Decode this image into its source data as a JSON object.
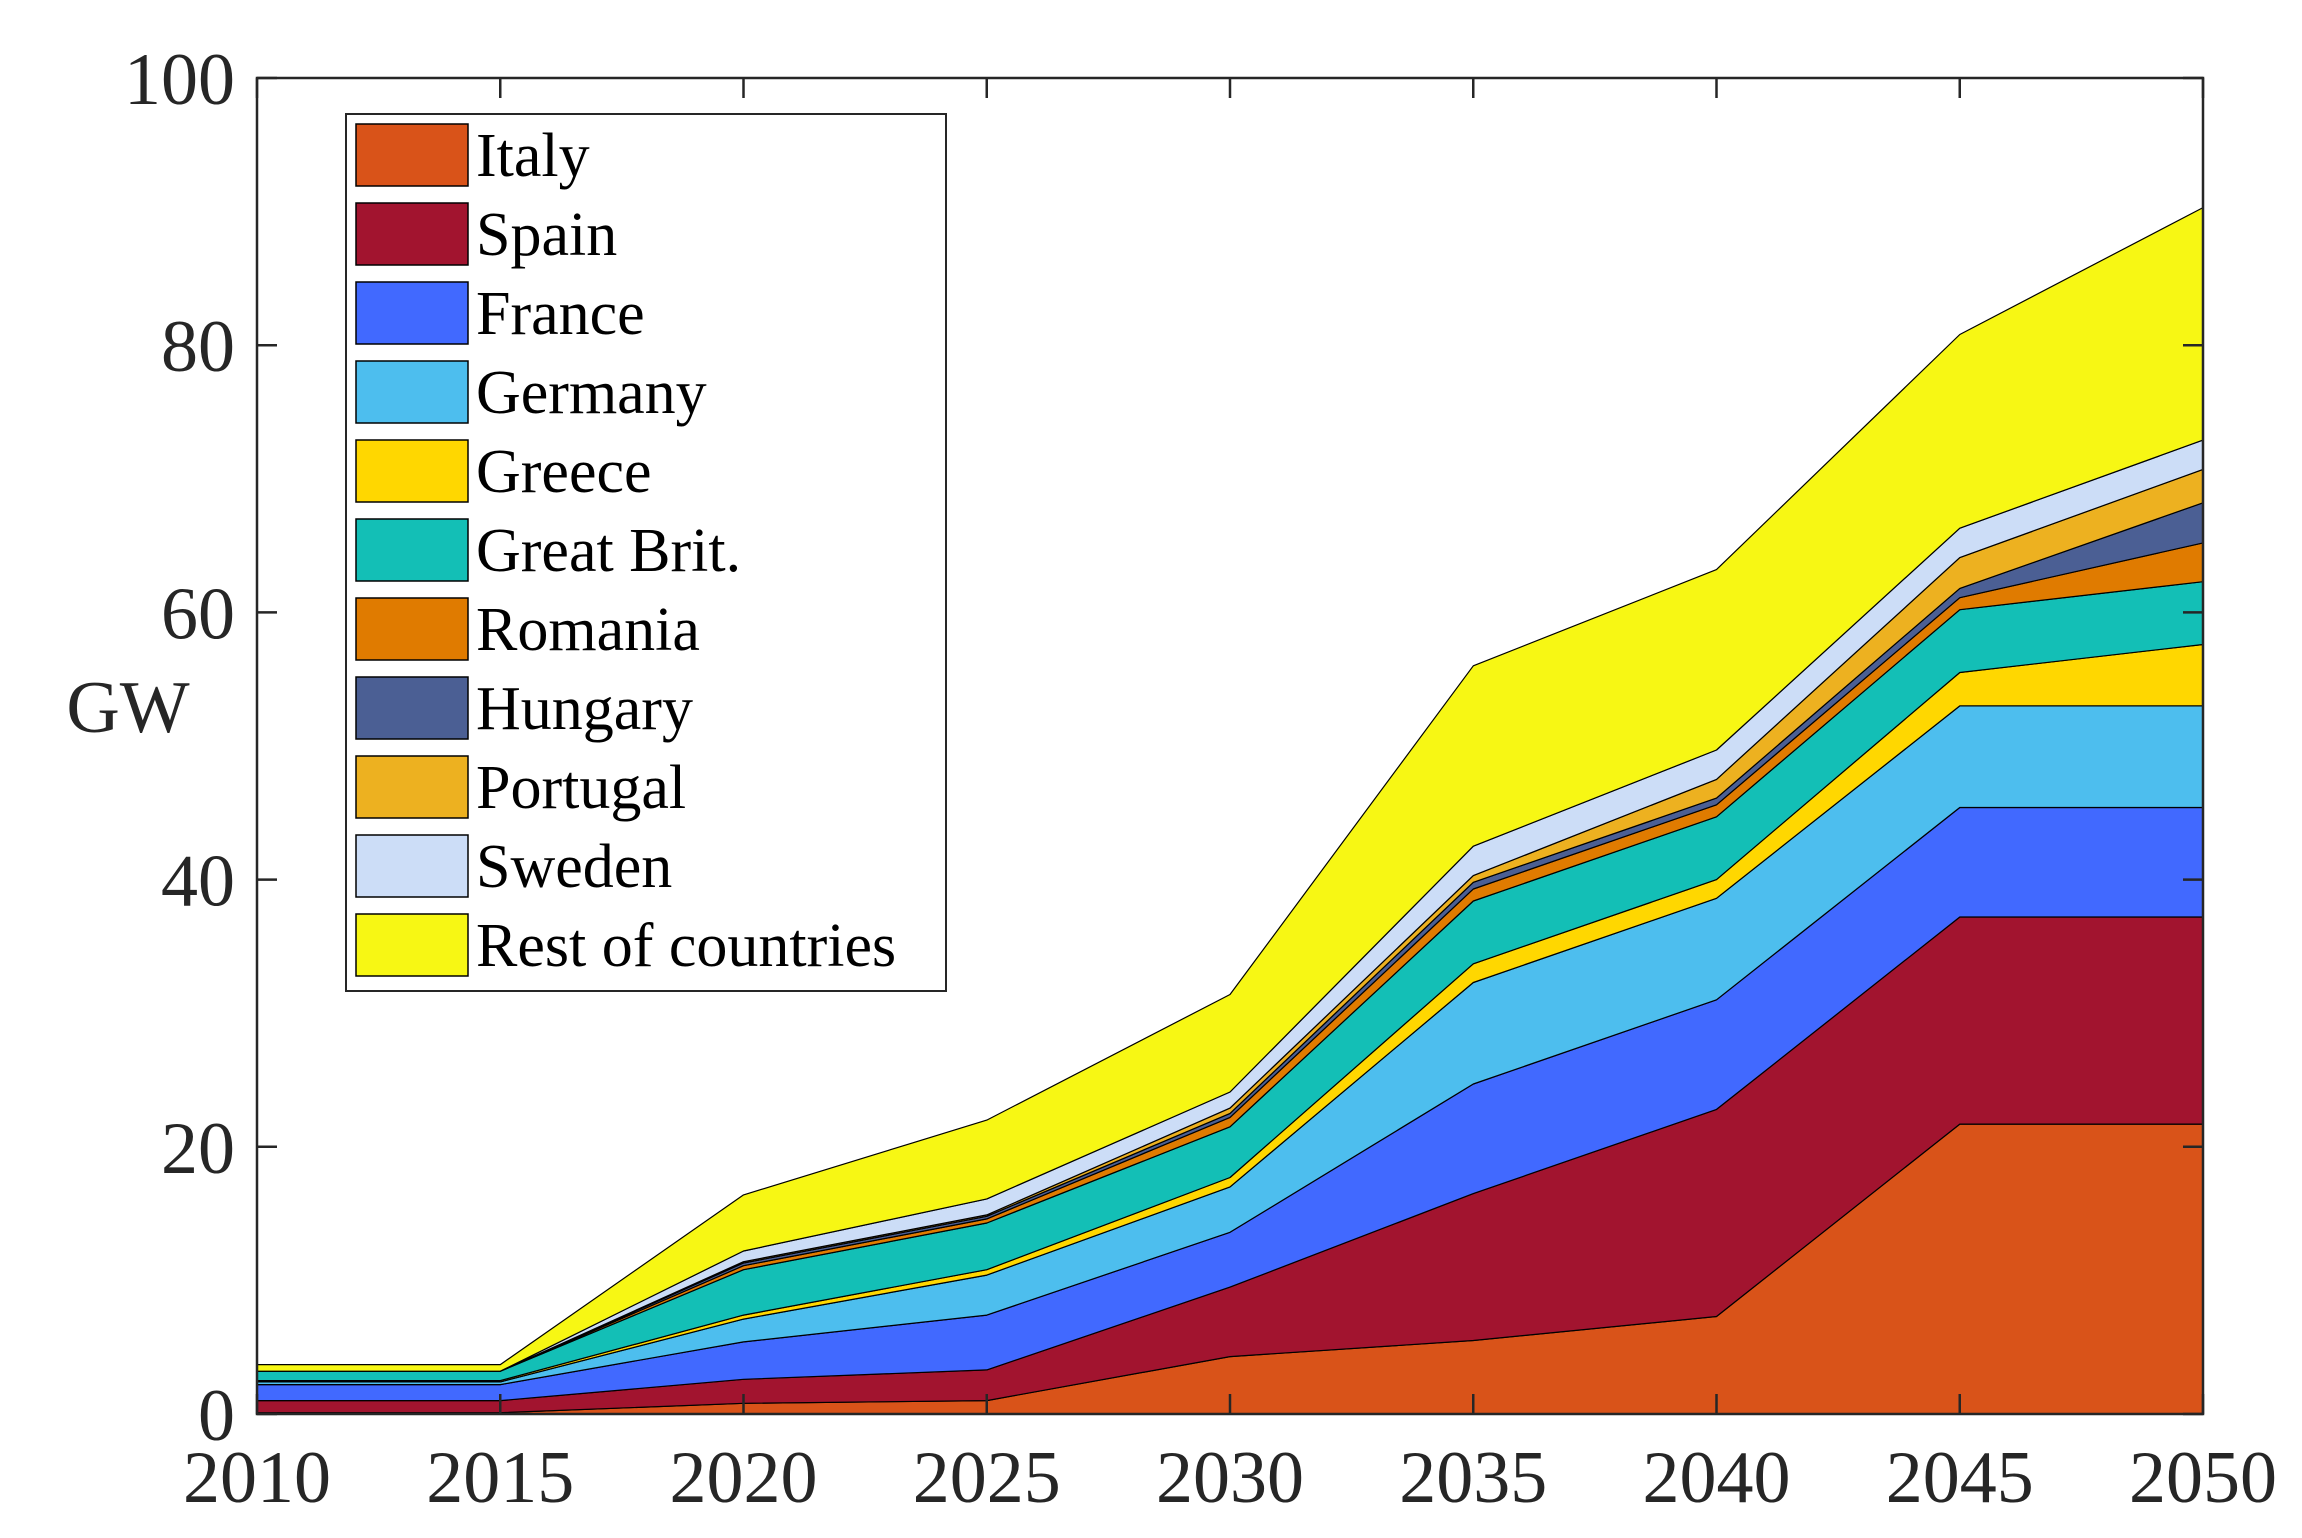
{
  "chart_data": {
    "type": "area",
    "stacked": true,
    "xlabel": "",
    "ylabel": "GW",
    "xlim": [
      2010,
      2050
    ],
    "ylim": [
      0,
      100
    ],
    "x": [
      2010,
      2015,
      2020,
      2025,
      2030,
      2035,
      2040,
      2045,
      2050
    ],
    "x_ticks": [
      "2010",
      "2015",
      "2020",
      "2025",
      "2030",
      "2035",
      "2040",
      "2045",
      "2050"
    ],
    "y_ticks": [
      "0",
      "20",
      "40",
      "60",
      "80",
      "100"
    ],
    "grid": false,
    "legend_position": "top-left",
    "series": [
      {
        "name": "Italy",
        "color": "#D95319",
        "values": [
          0.1,
          0.1,
          0.8,
          1.0,
          4.3,
          5.5,
          7.3,
          21.7,
          21.7
        ]
      },
      {
        "name": "Spain",
        "color": "#A2142F",
        "values": [
          0.9,
          0.9,
          1.8,
          2.3,
          5.2,
          11.0,
          15.5,
          15.5,
          15.5
        ]
      },
      {
        "name": "France",
        "color": "#4169FF",
        "values": [
          1.2,
          1.2,
          2.8,
          4.1,
          4.1,
          8.2,
          8.2,
          8.2,
          8.2
        ]
      },
      {
        "name": "Germany",
        "color": "#4DBEEE",
        "values": [
          0.2,
          0.2,
          1.7,
          3.0,
          3.4,
          7.6,
          7.6,
          7.6,
          7.6
        ]
      },
      {
        "name": "Greece",
        "color": "#FFD700",
        "values": [
          0.1,
          0.1,
          0.3,
          0.4,
          0.7,
          1.4,
          1.4,
          2.5,
          4.6
        ]
      },
      {
        "name": "Great Brit.",
        "color": "#13BFB6",
        "values": [
          0.7,
          0.7,
          3.4,
          3.5,
          3.8,
          4.7,
          4.7,
          4.7,
          4.7
        ]
      },
      {
        "name": "Romania",
        "color": "#E07B00",
        "values": [
          0.0,
          0.0,
          0.3,
          0.3,
          0.7,
          0.9,
          0.9,
          0.9,
          2.9
        ]
      },
      {
        "name": "Hungary",
        "color": "#4B5F94",
        "values": [
          0.0,
          0.0,
          0.2,
          0.2,
          0.3,
          0.5,
          0.5,
          0.7,
          3.0
        ]
      },
      {
        "name": "Portugal",
        "color": "#EDB120",
        "values": [
          0.0,
          0.0,
          0.1,
          0.1,
          0.4,
          0.5,
          1.4,
          2.3,
          2.5
        ]
      },
      {
        "name": "Sweden",
        "color": "#CCDDF7",
        "values": [
          0.0,
          0.0,
          0.8,
          1.2,
          1.2,
          2.2,
          2.2,
          2.2,
          2.2
        ]
      },
      {
        "name": "Rest of countries",
        "color": "#F7F714",
        "values": [
          0.5,
          0.5,
          4.2,
          5.9,
          7.3,
          13.5,
          13.5,
          14.5,
          17.4
        ]
      }
    ]
  }
}
